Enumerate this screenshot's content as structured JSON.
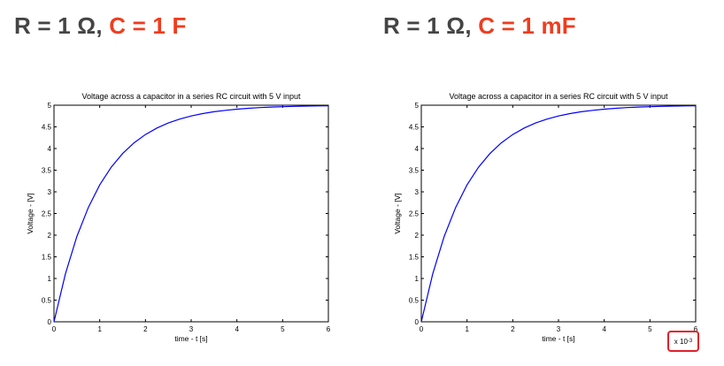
{
  "headings": [
    {
      "prefix": "R = 1 Ω,",
      "highlight": "C = 1 F"
    },
    {
      "prefix": "R = 1 Ω,",
      "highlight": "C = 1 mF"
    }
  ],
  "colors": {
    "highlight": "#f03c1e",
    "curve": "#0000ff",
    "exponent_box": "#e0202a"
  },
  "chart_data": [
    {
      "type": "line",
      "title": "Voltage across a capacitor in a series RC circuit with 5 V input",
      "xlabel": "time - t [s]",
      "ylabel": "Voltage - [V]",
      "xlim": [
        0,
        6
      ],
      "ylim": [
        0,
        5
      ],
      "xticks": [
        0,
        1,
        2,
        3,
        4,
        5,
        6
      ],
      "yticks": [
        0,
        0.5,
        1,
        1.5,
        2,
        2.5,
        3,
        3.5,
        4,
        4.5,
        5
      ],
      "x_multiplier": "",
      "series": [
        {
          "x": [
            0,
            0.25,
            0.5,
            0.75,
            1,
            1.25,
            1.5,
            1.75,
            2,
            2.25,
            2.5,
            2.75,
            3,
            3.25,
            3.5,
            3.75,
            4,
            4.25,
            4.5,
            4.75,
            5,
            5.25,
            5.5,
            5.75,
            6
          ],
          "y": [
            0,
            1.106,
            1.967,
            2.638,
            3.161,
            3.567,
            3.884,
            4.131,
            4.323,
            4.473,
            4.59,
            4.68,
            4.751,
            4.806,
            4.849,
            4.882,
            4.908,
            4.929,
            4.944,
            4.957,
            4.966,
            4.974,
            4.98,
            4.984,
            4.988
          ]
        }
      ]
    },
    {
      "type": "line",
      "title": "Voltage across a capacitor in a series RC circuit with 5 V input",
      "xlabel": "time - t [s]",
      "ylabel": "Voltage - [V]",
      "xlim": [
        0,
        6
      ],
      "ylim": [
        0,
        5
      ],
      "xticks": [
        0,
        1,
        2,
        3,
        4,
        5,
        6
      ],
      "yticks": [
        0,
        0.5,
        1,
        1.5,
        2,
        2.5,
        3,
        3.5,
        4,
        4.5,
        5
      ],
      "x_multiplier": "x 10",
      "x_multiplier_exponent": "-3",
      "series": [
        {
          "x": [
            0,
            0.25,
            0.5,
            0.75,
            1,
            1.25,
            1.5,
            1.75,
            2,
            2.25,
            2.5,
            2.75,
            3,
            3.25,
            3.5,
            3.75,
            4,
            4.25,
            4.5,
            4.75,
            5,
            5.25,
            5.5,
            5.75,
            6
          ],
          "y": [
            0,
            1.106,
            1.967,
            2.638,
            3.161,
            3.567,
            3.884,
            4.131,
            4.323,
            4.473,
            4.59,
            4.68,
            4.751,
            4.806,
            4.849,
            4.882,
            4.908,
            4.929,
            4.944,
            4.957,
            4.966,
            4.974,
            4.98,
            4.984,
            4.988
          ]
        }
      ]
    }
  ]
}
